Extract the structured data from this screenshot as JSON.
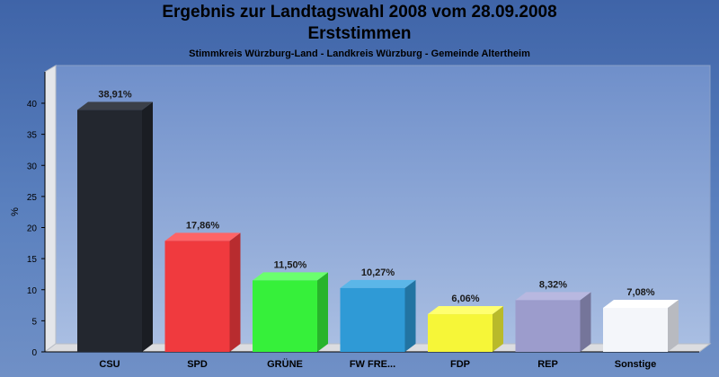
{
  "chart": {
    "title": "Ergebnis zur Landtagswahl 2008 vom 28.09.2008",
    "title2": "Erststimmen",
    "subtitle": "Stimmkreis Würzburg-Land - Landkreis Würzburg - Gemeinde Altertheim"
  },
  "chart_data": {
    "type": "bar",
    "title": "Ergebnis zur Landtagswahl 2008 vom 28.09.2008",
    "subtitle": "Erststimmen",
    "ylabel": "%",
    "xlabel": "",
    "ylim": [
      0,
      40
    ],
    "yticks": [
      0,
      5,
      10,
      15,
      20,
      25,
      30,
      35,
      40
    ],
    "grid": false,
    "categories": [
      "CSU",
      "SPD",
      "GRÜNE",
      "FW FRE...",
      "FDP",
      "REP",
      "Sonstige"
    ],
    "values": [
      38.91,
      17.86,
      11.5,
      10.27,
      6.06,
      8.32,
      7.08
    ],
    "value_labels": [
      "38,91%",
      "17,86%",
      "11,50%",
      "10,27%",
      "6,06%",
      "8,32%",
      "7,08%"
    ],
    "colors": [
      "#23272f",
      "#f03a3e",
      "#36f03a",
      "#2f9ad6",
      "#f6f638",
      "#9c9ccc",
      "#f4f6fa"
    ],
    "side_colors": [
      "#1a1d23",
      "#b82c2f",
      "#28b42b",
      "#2274a2",
      "#b9ba2a",
      "#75759a",
      "#b8bac0"
    ],
    "top_colors": [
      "#3b4049",
      "#ff6466",
      "#6bff6e",
      "#5bb6e8",
      "#ffff70",
      "#b8b8e0",
      "#ffffff"
    ]
  }
}
